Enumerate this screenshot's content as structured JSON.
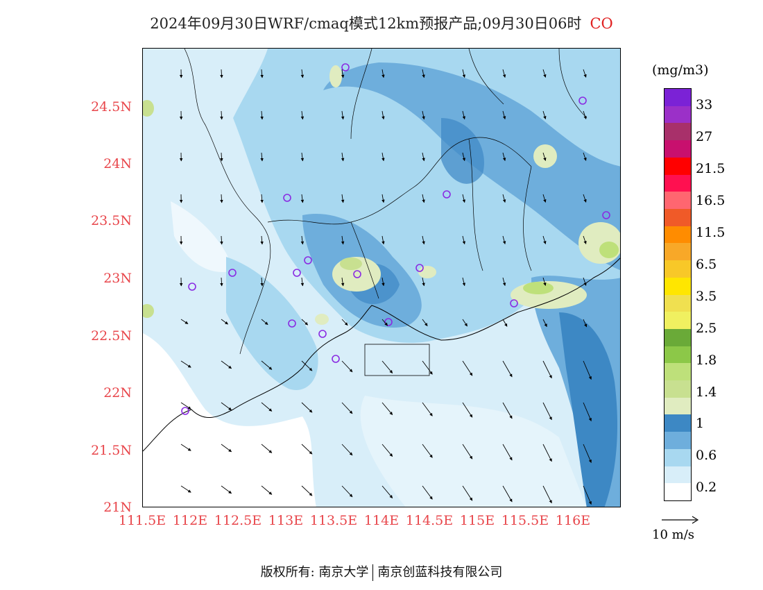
{
  "title": {
    "text": "2024年09月30日WRF/cmaq模式12km预报产品;09月30日06时",
    "species": "CO"
  },
  "axes": {
    "lat_labels": [
      "24.5N",
      "24N",
      "23.5N",
      "23N",
      "22.5N",
      "22N",
      "21.5N",
      "21N"
    ],
    "lon_labels": [
      "111.5E",
      "112E",
      "112.5E",
      "113E",
      "113.5E",
      "114E",
      "114.5E",
      "115E",
      "115.5E",
      "116E"
    ]
  },
  "colorbar": {
    "unit": "(mg/m3)",
    "labels": [
      "33",
      "27",
      "21.5",
      "16.5",
      "11.5",
      "6.5",
      "3.5",
      "2.5",
      "1.8",
      "1.4",
      "1",
      "0.6",
      "0.2"
    ],
    "colors": [
      "#7b22d6",
      "#9b30c8",
      "#a8306a",
      "#c8106e",
      "#ff0000",
      "#ff1050",
      "#ff6670",
      "#f05a28",
      "#ff8c00",
      "#f8a828",
      "#f8c828",
      "#ffe600",
      "#f0e050",
      "#f0f060",
      "#6aaa38",
      "#8cc848",
      "#bee07a",
      "#c8e090",
      "#e0ecc0",
      "#3d88c4",
      "#6eaedc",
      "#a8d8f0",
      "#d8eef9",
      "#ffffff"
    ]
  },
  "wind_reference": {
    "label": "10 m/s"
  },
  "footer": {
    "left": "版权所有: 南京大学",
    "right": "南京创蓝科技有限公司"
  }
}
